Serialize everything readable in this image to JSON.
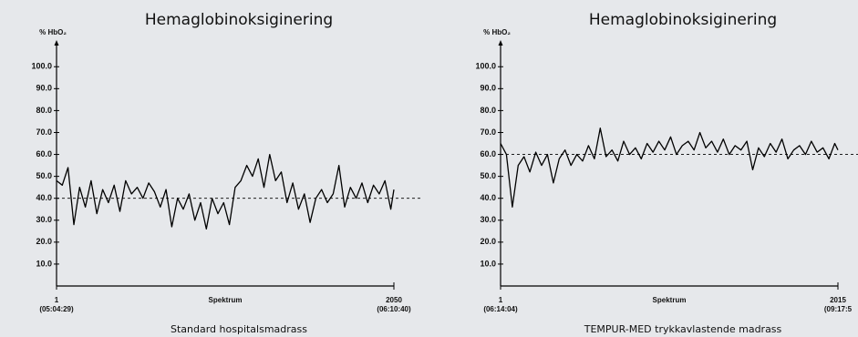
{
  "chart_data": [
    {
      "type": "line",
      "title": "Hemaglobinoksiginering",
      "y_label": "% HbO₂",
      "x_label": "Spektrum",
      "caption": "Standard hospitalsmadrass",
      "x": [
        1,
        36,
        71,
        106,
        141,
        176,
        211,
        246,
        281,
        316,
        351,
        386,
        421,
        456,
        491,
        526,
        561,
        596,
        631,
        666,
        701,
        736,
        771,
        806,
        841,
        876,
        911,
        946,
        981,
        1016,
        1051,
        1086,
        1121,
        1156,
        1191,
        1226,
        1261,
        1296,
        1331,
        1366,
        1401,
        1436,
        1471,
        1506,
        1541,
        1576,
        1611,
        1646,
        1681,
        1716,
        1751,
        1786,
        1821,
        1856,
        1891,
        1926,
        1961,
        1996,
        2031,
        2050
      ],
      "series": [
        {
          "color": "#000000",
          "values": [
            48,
            46,
            54,
            28,
            45,
            36,
            48,
            33,
            44,
            38,
            46,
            34,
            48,
            42,
            45,
            40,
            47,
            43,
            36,
            44,
            27,
            40,
            35,
            42,
            30,
            38,
            26,
            40,
            33,
            38,
            28,
            45,
            48,
            55,
            50,
            58,
            45,
            60,
            48,
            52,
            38,
            47,
            35,
            42,
            29,
            40,
            44,
            38,
            42,
            55,
            36,
            45,
            40,
            47,
            38,
            46,
            42,
            48,
            35,
            44
          ]
        }
      ],
      "reference_line": 40,
      "xlim": [
        1,
        2050
      ],
      "xticks": [
        {
          "value": 1,
          "label": "1",
          "time": "(05:04:29)"
        },
        {
          "value": 2050,
          "label": "2050",
          "time": "(06:10:40)"
        }
      ],
      "ylim": [
        0,
        108
      ],
      "yticks": [
        {
          "value": 10,
          "label": "10.0"
        },
        {
          "value": 20,
          "label": "20.0"
        },
        {
          "value": 30,
          "label": "30.0"
        },
        {
          "value": 40,
          "label": "40.0"
        },
        {
          "value": 50,
          "label": "50.0"
        },
        {
          "value": 60,
          "label": "60.0"
        },
        {
          "value": 70,
          "label": "70.0"
        },
        {
          "value": 80,
          "label": "80.0"
        },
        {
          "value": 90,
          "label": "90.0"
        },
        {
          "value": 100,
          "label": "100.0"
        }
      ]
    },
    {
      "type": "line",
      "title": "Hemaglobinoksiginering",
      "y_label": "% HbO₂",
      "x_label": "Spektrum",
      "caption": "TEMPUR-MED trykkavlastende madrass",
      "x": [
        1,
        36,
        71,
        106,
        141,
        176,
        211,
        246,
        281,
        316,
        351,
        386,
        421,
        456,
        491,
        526,
        561,
        596,
        631,
        666,
        701,
        736,
        771,
        806,
        841,
        876,
        911,
        946,
        981,
        1016,
        1051,
        1086,
        1121,
        1156,
        1191,
        1226,
        1261,
        1296,
        1331,
        1366,
        1401,
        1436,
        1471,
        1506,
        1541,
        1576,
        1611,
        1646,
        1681,
        1716,
        1751,
        1786,
        1821,
        1856,
        1891,
        1926,
        1961,
        1996,
        2015
      ],
      "series": [
        {
          "color": "#000000",
          "values": [
            65,
            60,
            36,
            55,
            59,
            52,
            61,
            55,
            60,
            47,
            58,
            62,
            55,
            60,
            57,
            64,
            58,
            72,
            59,
            62,
            57,
            66,
            60,
            63,
            58,
            65,
            61,
            66,
            62,
            68,
            60,
            64,
            66,
            62,
            70,
            63,
            66,
            61,
            67,
            60,
            64,
            62,
            66,
            53,
            63,
            59,
            65,
            61,
            67,
            58,
            62,
            64,
            60,
            66,
            61,
            63,
            58,
            65,
            62
          ]
        }
      ],
      "reference_line": 60,
      "xlim": [
        1,
        2015
      ],
      "xticks": [
        {
          "value": 1,
          "label": "1",
          "time": "(06:14:04)"
        },
        {
          "value": 2015,
          "label": "2015",
          "time": "(09:17:5"
        }
      ],
      "ylim": [
        0,
        108
      ],
      "yticks": [
        {
          "value": 10,
          "label": "10.0"
        },
        {
          "value": 20,
          "label": "20.0"
        },
        {
          "value": 30,
          "label": "30.0"
        },
        {
          "value": 40,
          "label": "40.0"
        },
        {
          "value": 50,
          "label": "50.0"
        },
        {
          "value": 60,
          "label": "60.0"
        },
        {
          "value": 70,
          "label": "70.0"
        },
        {
          "value": 80,
          "label": "80.0"
        },
        {
          "value": 90,
          "label": "90.0"
        },
        {
          "value": 100,
          "label": "100.0"
        }
      ]
    }
  ]
}
